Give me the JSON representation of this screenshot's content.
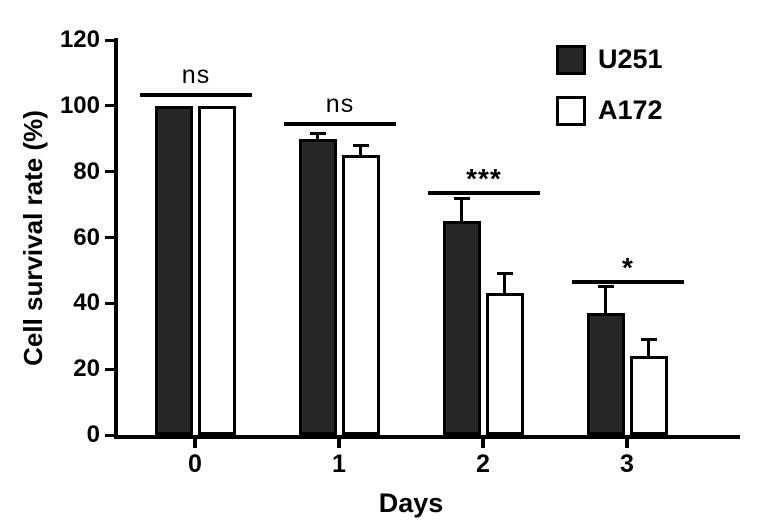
{
  "chart_data": {
    "type": "bar",
    "title": "",
    "xlabel": "Days",
    "ylabel": "Cell survival rate (%)",
    "categories": [
      "0",
      "1",
      "2",
      "3"
    ],
    "series": [
      {
        "name": "U251",
        "values": [
          100,
          90,
          65,
          37
        ],
        "errors": [
          0,
          1.5,
          7,
          8
        ],
        "fill": "#262626"
      },
      {
        "name": "A172",
        "values": [
          100,
          85,
          43,
          24
        ],
        "errors": [
          0,
          3,
          6,
          5
        ],
        "fill": "#ffffff"
      }
    ],
    "significance": [
      {
        "label": "ns",
        "y": 104
      },
      {
        "label": "ns",
        "y": 95
      },
      {
        "label": "***",
        "y": 74
      },
      {
        "label": "*",
        "y": 47
      }
    ],
    "ylim": [
      0,
      120
    ],
    "yticks": [
      0,
      20,
      40,
      60,
      80,
      100,
      120
    ],
    "legend_position": "top-right",
    "grid": false
  },
  "colors": {
    "bar_dark": "#262626",
    "bar_light": "#ffffff",
    "axis": "#000000",
    "background": "#ffffff"
  }
}
